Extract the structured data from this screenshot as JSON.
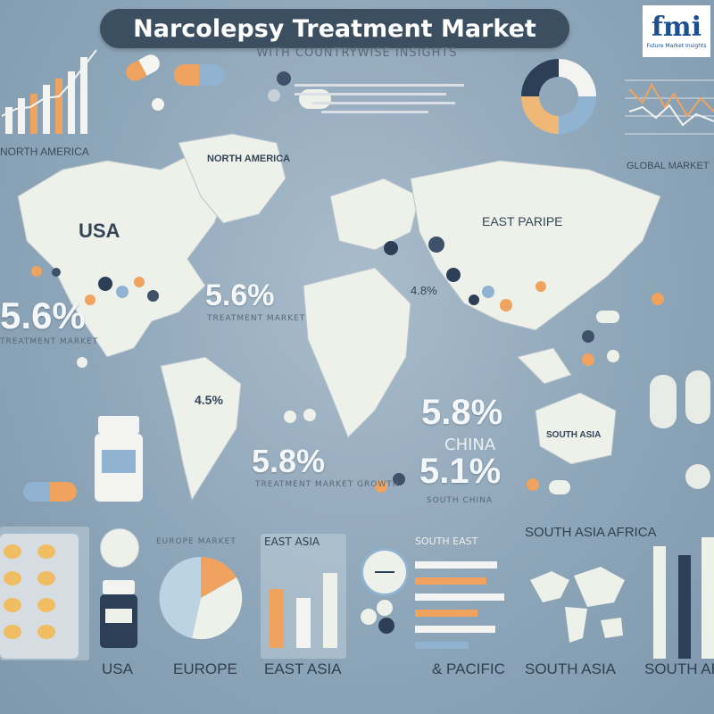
{
  "title": "Narcolepsy Treatment Market",
  "subtitle": "WITH COUNTRYWISE INSIGHTS",
  "logo": {
    "mark": "fmi",
    "tagline": "Future Market Insights"
  },
  "map_labels": {
    "north_america_header": "NORTH AMERICA",
    "usa": "USA",
    "greenland": "NORTH AMERICA",
    "east_europe": "EAST PARIPE",
    "global": "GLOBAL MARKET",
    "australia": "SOUTH ASIA"
  },
  "stats": {
    "left_pct": "5.6%",
    "left_caption": "TREATMENT MARKET",
    "na_pct": "5.6%",
    "na_caption": "TREATMENT MARKET",
    "sa_pct": "4.5%",
    "africa_pct": "5.8%",
    "africa_caption": "TREATMENT MARKET GROWTH",
    "asia_pct": "5.8%",
    "china_label": "CHINA",
    "china_pct": "5.1%",
    "china_caption": "SOUTH CHINA",
    "europe_pct": "4.8%"
  },
  "bottom_section": {
    "europe_header": "EUROPE MARKET",
    "east_asia_header": "EAST ASIA",
    "south_east_header": "SOUTH EAST",
    "south_asia_africa_header": "SOUTH ASIA AFRICA"
  },
  "bottom_labels": [
    "USA",
    "EUROPE",
    "EAST ASIA",
    "& PACIFIC",
    "SOUTH ASIA",
    "SOUTH AFRICA"
  ],
  "colors": {
    "background": "#8ea6b9",
    "title_pill": "#3c4f61",
    "map_land": "#eef0ea",
    "accent_orange": "#f0a35e",
    "accent_navy": "#2c3f57",
    "accent_blue": "#8fb3d0",
    "logo_blue": "#1b4f8f"
  },
  "icons": [
    "capsule-icon",
    "pill-bottle-icon",
    "blister-pack-icon",
    "pie-chart-icon",
    "donut-chart-icon",
    "bar-chart-icon",
    "clock-icon",
    "world-map-icon"
  ]
}
